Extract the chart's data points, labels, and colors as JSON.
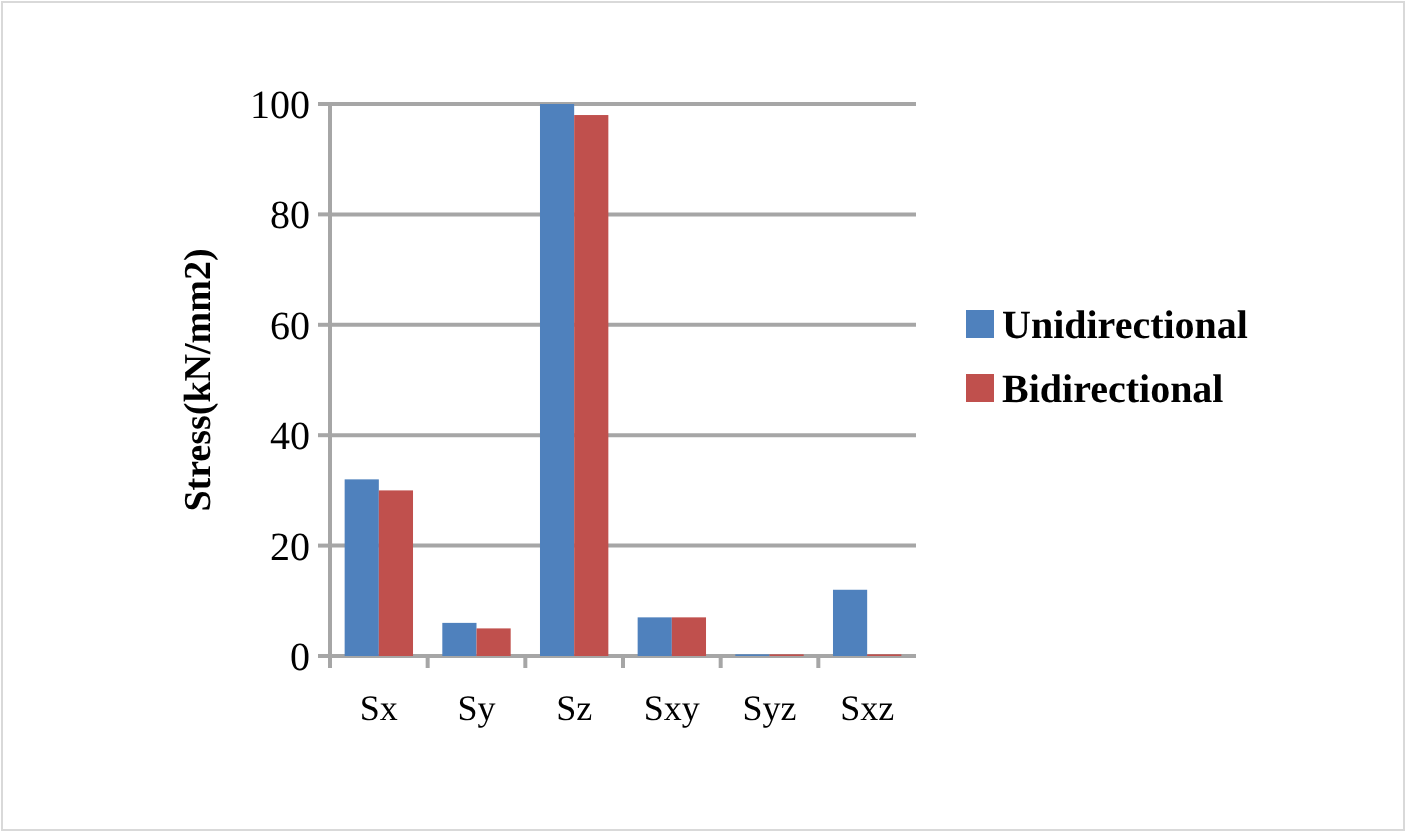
{
  "chart_data": {
    "type": "bar",
    "ylabel": "Stress(kN/mm2)",
    "categories": [
      "Sx",
      "Sy",
      "Sz",
      "Sxy",
      "Syz",
      "Sxz"
    ],
    "series": [
      {
        "name": "Unidirectional",
        "color": "#4f81bd",
        "values": [
          32,
          6,
          100,
          7,
          0.3,
          12
        ]
      },
      {
        "name": "Bidirectional",
        "color": "#c0504d",
        "values": [
          30,
          5,
          98,
          7,
          0.3,
          0.3
        ]
      }
    ],
    "ylim": [
      0,
      100
    ],
    "yticks": [
      0,
      20,
      40,
      60,
      80,
      100
    ],
    "grid": "y",
    "legend": "right"
  }
}
